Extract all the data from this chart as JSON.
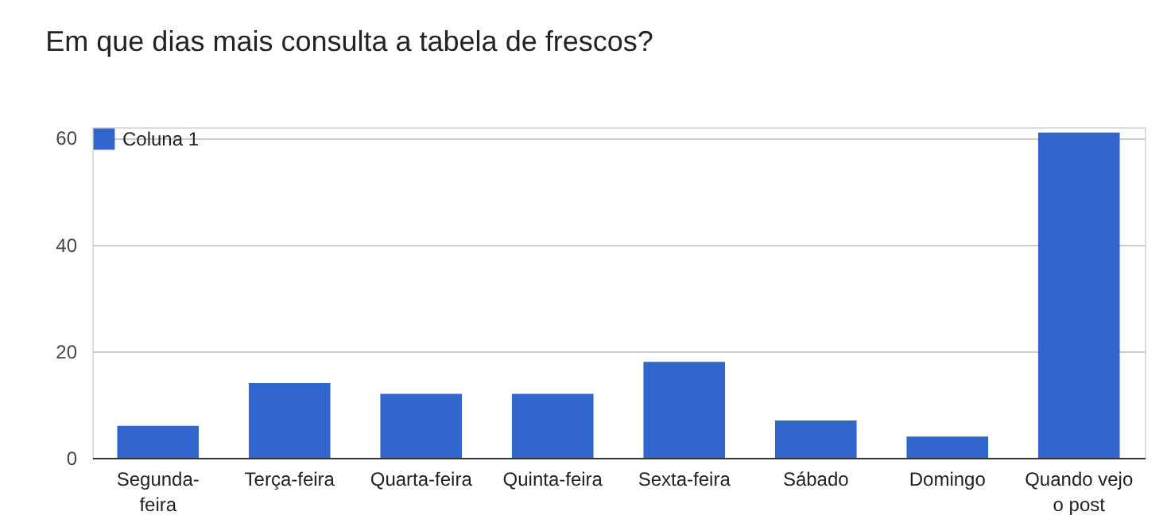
{
  "chart_data": {
    "type": "bar",
    "title": "Em que dias mais consulta a tabela de frescos?",
    "categories": [
      "Segunda-feira",
      "Terça-feira",
      "Quarta-feira",
      "Quinta-feira",
      "Sexta-feira",
      "Sábado",
      "Domingo",
      "Quando vejo o post"
    ],
    "series": [
      {
        "name": "Coluna 1",
        "color": "#3366cc",
        "values": [
          6,
          14,
          12,
          12,
          18,
          7,
          4,
          61
        ]
      }
    ],
    "ylim": [
      0,
      62
    ],
    "yticks": [
      0,
      20,
      40,
      60
    ],
    "grid": "y",
    "legend": "top left"
  }
}
